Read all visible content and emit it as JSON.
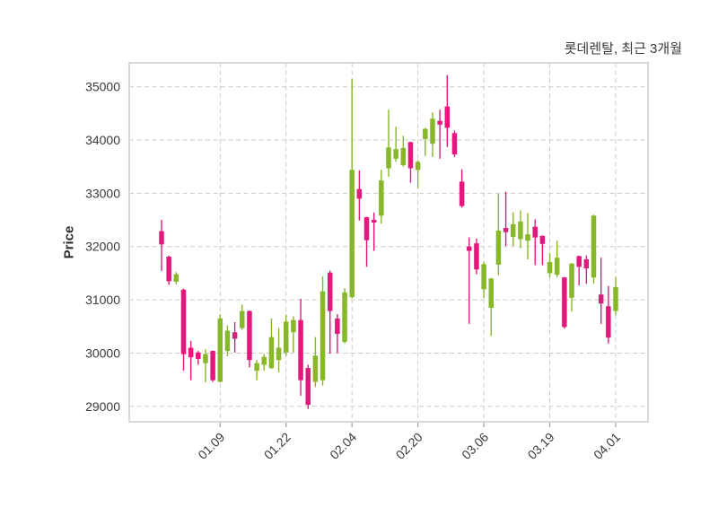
{
  "header": {
    "title": "롯데렌탈, 최근 3개월"
  },
  "colors": {
    "up": "#87b829",
    "down": "#e2187d",
    "grid": "#cbcbcb",
    "frame": "#d8d8d8",
    "tick": "#aaaaaa",
    "text": "#3a3a3a",
    "background": "#ffffff"
  },
  "chart_data": {
    "type": "candlestick",
    "title": "롯데렌탈, 최근 3개월",
    "ylabel": "Price",
    "xlabel": "",
    "grid": true,
    "legend": "none",
    "ylim": [
      28710,
      35450
    ],
    "y_ticks": [
      29000,
      30000,
      31000,
      32000,
      33000,
      34000,
      35000
    ],
    "x_tick_labels": [
      "01.09",
      "01.22",
      "02.04",
      "02.20",
      "03.06",
      "03.19",
      "04.01"
    ],
    "x_tick_indices": [
      8,
      17,
      26,
      35,
      44,
      53,
      62
    ],
    "up_color": "#87b829",
    "down_color": "#e2187d",
    "candle_format": [
      "open",
      "high",
      "low",
      "close"
    ],
    "candles": [
      [
        32290,
        32500,
        31540,
        32040
      ],
      [
        31810,
        31830,
        31280,
        31350
      ],
      [
        31340,
        31520,
        31290,
        31480
      ],
      [
        31190,
        31210,
        29670,
        29980
      ],
      [
        30100,
        30230,
        29490,
        29920
      ],
      [
        30010,
        30040,
        29780,
        29890
      ],
      [
        29810,
        30070,
        29450,
        29980
      ],
      [
        30040,
        30050,
        29460,
        29490
      ],
      [
        29460,
        30730,
        29450,
        30650
      ],
      [
        30040,
        30520,
        29940,
        30420
      ],
      [
        30390,
        30580,
        30010,
        30270
      ],
      [
        30470,
        30910,
        30440,
        30790
      ],
      [
        30790,
        30800,
        29730,
        29870
      ],
      [
        29670,
        29870,
        29490,
        29810
      ],
      [
        29780,
        29980,
        29670,
        29930
      ],
      [
        29720,
        30650,
        29700,
        30300
      ],
      [
        29870,
        30470,
        29640,
        30100
      ],
      [
        30010,
        30720,
        29950,
        30590
      ],
      [
        30390,
        30690,
        30010,
        30620
      ],
      [
        30620,
        31020,
        29200,
        29490
      ],
      [
        29720,
        29780,
        28950,
        29030
      ],
      [
        29460,
        30300,
        29360,
        29950
      ],
      [
        29490,
        31440,
        29390,
        31160
      ],
      [
        31510,
        31550,
        29990,
        30790
      ],
      [
        30650,
        30730,
        30000,
        30360
      ],
      [
        30210,
        31220,
        30180,
        31140
      ],
      [
        31050,
        35150,
        31030,
        33440
      ],
      [
        33080,
        33430,
        32490,
        32900
      ],
      [
        32550,
        32560,
        31620,
        32120
      ],
      [
        32500,
        32640,
        31920,
        32450
      ],
      [
        32580,
        33440,
        32430,
        33240
      ],
      [
        33470,
        34570,
        33310,
        33860
      ],
      [
        33650,
        34250,
        33590,
        33830
      ],
      [
        33530,
        34080,
        33500,
        33850
      ],
      [
        33960,
        33970,
        33200,
        33470
      ],
      [
        33440,
        33620,
        33100,
        33590
      ],
      [
        34020,
        34230,
        33700,
        34210
      ],
      [
        33930,
        34520,
        33680,
        34400
      ],
      [
        34360,
        34570,
        33650,
        34290
      ],
      [
        34630,
        35220,
        33870,
        34230
      ],
      [
        34130,
        34180,
        33680,
        33730
      ],
      [
        33220,
        33450,
        32730,
        32760
      ],
      [
        32000,
        32170,
        30550,
        31920
      ],
      [
        32060,
        32150,
        31480,
        31570
      ],
      [
        31200,
        31720,
        31030,
        31670
      ],
      [
        30850,
        31410,
        30320,
        31400
      ],
      [
        31660,
        32990,
        31460,
        32300
      ],
      [
        32350,
        33030,
        32010,
        32270
      ],
      [
        32180,
        32640,
        32010,
        32420
      ],
      [
        32140,
        32680,
        31970,
        32470
      ],
      [
        32110,
        32630,
        31760,
        32230
      ],
      [
        32370,
        32510,
        31650,
        32170
      ],
      [
        32200,
        32210,
        31650,
        32050
      ],
      [
        31500,
        31880,
        31420,
        31710
      ],
      [
        31470,
        32110,
        31420,
        31790
      ],
      [
        31420,
        31430,
        30460,
        30490
      ],
      [
        31040,
        31690,
        30780,
        31680
      ],
      [
        31820,
        31830,
        31270,
        31620
      ],
      [
        31760,
        31830,
        31300,
        31590
      ],
      [
        31420,
        32600,
        31300,
        32580
      ],
      [
        31100,
        31790,
        30550,
        30930
      ],
      [
        30880,
        31260,
        30180,
        30290
      ],
      [
        30790,
        31430,
        30710,
        31240
      ]
    ]
  }
}
